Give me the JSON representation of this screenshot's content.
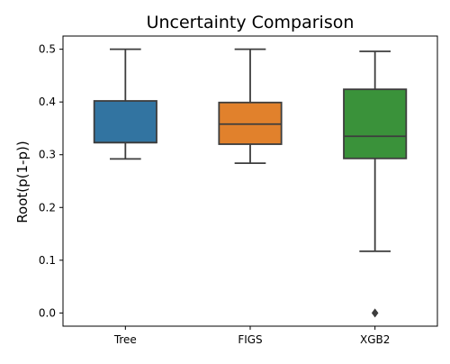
{
  "chart_data": {
    "type": "box",
    "title": "Uncertainty Comparison",
    "xlabel": "",
    "ylabel": "Root(p(1-p))",
    "ylim": [
      -0.025,
      0.525
    ],
    "yticks": [
      0.0,
      0.1,
      0.2,
      0.3,
      0.4,
      0.5
    ],
    "ytick_labels": [
      "0.0",
      "0.1",
      "0.2",
      "0.3",
      "0.4",
      "0.5"
    ],
    "grid": false,
    "categories": [
      "Tree",
      "FIGS",
      "XGB2"
    ],
    "boxes": [
      {
        "name": "Tree",
        "whisker_low": 0.292,
        "q1": 0.323,
        "median": 0.323,
        "q3": 0.402,
        "whisker_high": 0.5,
        "outliers": [],
        "color": "#3274a1"
      },
      {
        "name": "FIGS",
        "whisker_low": 0.284,
        "q1": 0.32,
        "median": 0.358,
        "q3": 0.399,
        "whisker_high": 0.5,
        "outliers": [],
        "color": "#e1812c"
      },
      {
        "name": "XGB2",
        "whisker_low": 0.117,
        "q1": 0.293,
        "median": 0.335,
        "q3": 0.424,
        "whisker_high": 0.496,
        "outliers": [
          0.0,
          0.0,
          0.0
        ],
        "color": "#3a923a"
      }
    ]
  }
}
